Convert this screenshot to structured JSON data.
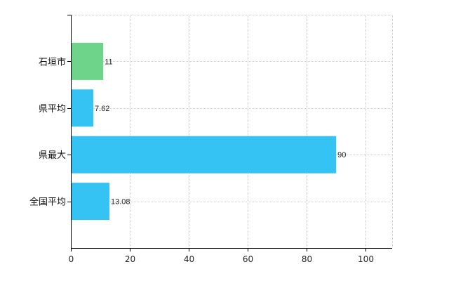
{
  "chart_data": {
    "type": "bar",
    "orientation": "horizontal",
    "categories": [
      "石垣市",
      "県平均",
      "県最大",
      "全国平均"
    ],
    "values": [
      11,
      7.62,
      90,
      13.08
    ],
    "value_labels": [
      "11",
      "7.62",
      "90",
      "13.08"
    ],
    "bar_colors": [
      "#6ed48a",
      "#35c3f3",
      "#35c3f3",
      "#35c3f3"
    ],
    "xlim": [
      0,
      109
    ],
    "xticks": [
      0,
      20,
      40,
      60,
      80,
      100
    ],
    "xtick_labels": [
      "0",
      "20",
      "40",
      "60",
      "80",
      "100"
    ],
    "grid": true,
    "legend": "none",
    "title": "",
    "xlabel": "",
    "ylabel": ""
  },
  "colors": {
    "grid": "#d0d0d0",
    "axis": "#000000"
  }
}
